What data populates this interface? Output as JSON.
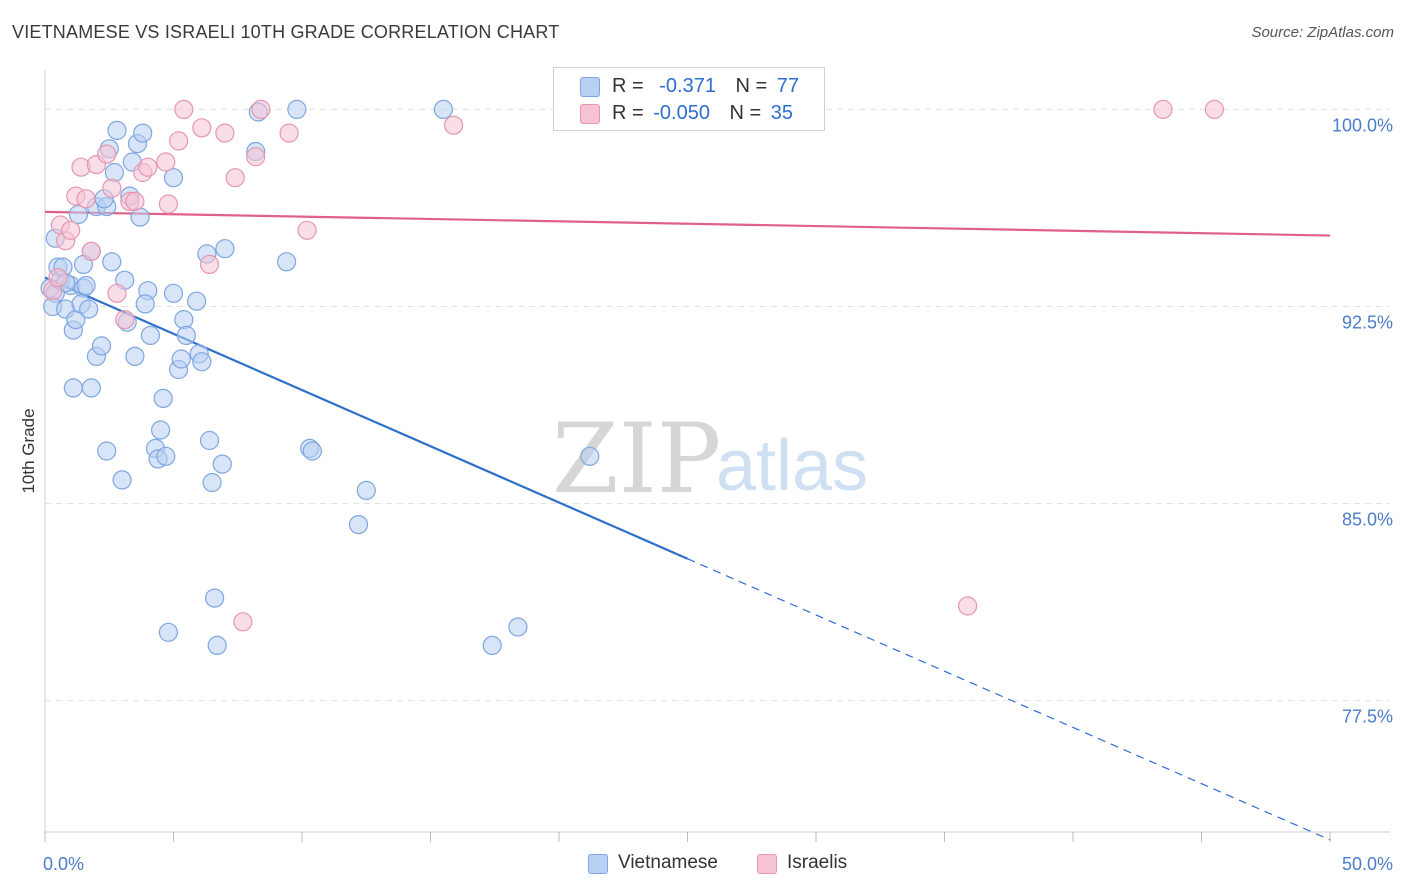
{
  "title": "VIETNAMESE VS ISRAELI 10TH GRADE CORRELATION CHART",
  "source": "Source: ZipAtlas.com",
  "legend": {
    "rows": [
      {
        "r_label": "R =",
        "r_value": "-0.371",
        "n_label": "N =",
        "n_value": "77"
      },
      {
        "r_label": "R =",
        "r_value": "-0.050",
        "n_label": "N =",
        "n_value": "35"
      }
    ]
  },
  "bottom_legend": [
    "Vietnamese",
    "Israelis"
  ],
  "watermark": {
    "zip": "ZIP",
    "atlas": "atlas"
  },
  "colors": {
    "blue_fill": "#b8d0f2",
    "blue_stroke": "#7ea6e0",
    "blue_line": "#2d6fcf",
    "pink_fill": "#f6c3d3",
    "pink_stroke": "#e796b1",
    "pink_line": "#e0608a"
  },
  "chart_data": {
    "type": "scatter",
    "title": "VIETNAMESE VS ISRAELI 10TH GRADE CORRELATION CHART",
    "xlabel": "",
    "ylabel": "10th Grade",
    "xlim": [
      0,
      50
    ],
    "ylim": [
      72.5,
      101.5
    ],
    "x_tick_labels": [
      {
        "value": 0,
        "label": "0.0%"
      },
      {
        "value": 50,
        "label": "50.0%"
      }
    ],
    "y_tick_labels": [
      {
        "value": 100,
        "label": "100.0%"
      },
      {
        "value": 92.5,
        "label": "92.5%"
      },
      {
        "value": 85,
        "label": "85.0%"
      },
      {
        "value": 77.5,
        "label": "77.5%"
      }
    ],
    "grid": true,
    "series": [
      {
        "name": "Vietnamese",
        "color": "blue",
        "trend": {
          "x0": 0,
          "y0": 93.6,
          "x1": 25,
          "y1": 82.9,
          "dash_to_x": 50,
          "dash_to_y": 72.2
        },
        "points": [
          [
            0.2,
            93.2
          ],
          [
            0.4,
            93.0
          ],
          [
            0.3,
            92.5
          ],
          [
            0.5,
            94.0
          ],
          [
            0.6,
            93.5
          ],
          [
            0.8,
            92.4
          ],
          [
            1.0,
            93.3
          ],
          [
            1.1,
            91.6
          ],
          [
            1.2,
            92.0
          ],
          [
            1.3,
            96.0
          ],
          [
            0.4,
            95.1
          ],
          [
            0.7,
            94.0
          ],
          [
            1.5,
            93.2
          ],
          [
            1.6,
            93.3
          ],
          [
            1.4,
            92.6
          ],
          [
            1.8,
            94.6
          ],
          [
            1.7,
            92.4
          ],
          [
            2.0,
            90.6
          ],
          [
            2.2,
            91.0
          ],
          [
            2.4,
            87.0
          ],
          [
            1.1,
            89.4
          ],
          [
            1.8,
            89.4
          ],
          [
            2.0,
            96.3
          ],
          [
            2.4,
            96.3
          ],
          [
            2.5,
            98.5
          ],
          [
            2.7,
            97.6
          ],
          [
            2.8,
            99.2
          ],
          [
            2.6,
            94.2
          ],
          [
            3.0,
            85.9
          ],
          [
            3.1,
            93.5
          ],
          [
            3.2,
            91.9
          ],
          [
            3.3,
            96.7
          ],
          [
            3.4,
            98.0
          ],
          [
            3.5,
            90.6
          ],
          [
            3.6,
            98.7
          ],
          [
            3.7,
            95.9
          ],
          [
            3.8,
            99.1
          ],
          [
            4.0,
            93.1
          ],
          [
            4.1,
            91.4
          ],
          [
            4.3,
            87.1
          ],
          [
            4.4,
            86.7
          ],
          [
            4.5,
            87.8
          ],
          [
            4.6,
            89.0
          ],
          [
            4.7,
            86.8
          ],
          [
            4.8,
            80.1
          ],
          [
            5.0,
            93.0
          ],
          [
            5.0,
            97.4
          ],
          [
            5.2,
            90.1
          ],
          [
            5.3,
            90.5
          ],
          [
            5.4,
            92.0
          ],
          [
            5.5,
            91.4
          ],
          [
            5.9,
            92.7
          ],
          [
            6.0,
            90.7
          ],
          [
            6.1,
            90.4
          ],
          [
            6.3,
            94.5
          ],
          [
            6.4,
            87.4
          ],
          [
            6.5,
            85.8
          ],
          [
            6.6,
            81.4
          ],
          [
            6.7,
            79.6
          ],
          [
            6.9,
            86.5
          ],
          [
            7.0,
            94.7
          ],
          [
            8.2,
            98.4
          ],
          [
            8.3,
            99.9
          ],
          [
            9.4,
            94.2
          ],
          [
            9.8,
            100.0
          ],
          [
            10.3,
            87.1
          ],
          [
            10.4,
            87.0
          ],
          [
            12.2,
            84.2
          ],
          [
            12.5,
            85.5
          ],
          [
            15.5,
            100.0
          ],
          [
            17.4,
            79.6
          ],
          [
            18.4,
            80.3
          ],
          [
            21.2,
            86.8
          ],
          [
            2.3,
            96.6
          ],
          [
            3.9,
            92.6
          ],
          [
            0.8,
            93.4
          ],
          [
            1.5,
            94.1
          ]
        ]
      },
      {
        "name": "Israelis",
        "color": "pink",
        "trend": {
          "x0": 0,
          "y0": 96.1,
          "x1": 50,
          "y1": 95.2
        },
        "points": [
          [
            0.3,
            93.1
          ],
          [
            0.5,
            93.6
          ],
          [
            0.6,
            95.6
          ],
          [
            0.8,
            95.0
          ],
          [
            1.0,
            95.4
          ],
          [
            1.2,
            96.7
          ],
          [
            1.4,
            97.8
          ],
          [
            1.6,
            96.6
          ],
          [
            1.8,
            94.6
          ],
          [
            2.0,
            97.9
          ],
          [
            2.4,
            98.3
          ],
          [
            2.6,
            97.0
          ],
          [
            2.8,
            93.0
          ],
          [
            3.1,
            92.0
          ],
          [
            3.3,
            96.5
          ],
          [
            3.5,
            96.5
          ],
          [
            3.8,
            97.6
          ],
          [
            4.0,
            97.8
          ],
          [
            4.7,
            98.0
          ],
          [
            4.8,
            96.4
          ],
          [
            5.2,
            98.8
          ],
          [
            5.4,
            100.0
          ],
          [
            6.1,
            99.3
          ],
          [
            6.4,
            94.1
          ],
          [
            7.0,
            99.1
          ],
          [
            7.4,
            97.4
          ],
          [
            7.7,
            80.5
          ],
          [
            8.2,
            98.2
          ],
          [
            8.4,
            100.0
          ],
          [
            9.5,
            99.1
          ],
          [
            10.2,
            95.4
          ],
          [
            15.9,
            99.4
          ],
          [
            35.9,
            81.1
          ],
          [
            43.5,
            100.0
          ],
          [
            45.5,
            100.0
          ]
        ]
      }
    ]
  }
}
